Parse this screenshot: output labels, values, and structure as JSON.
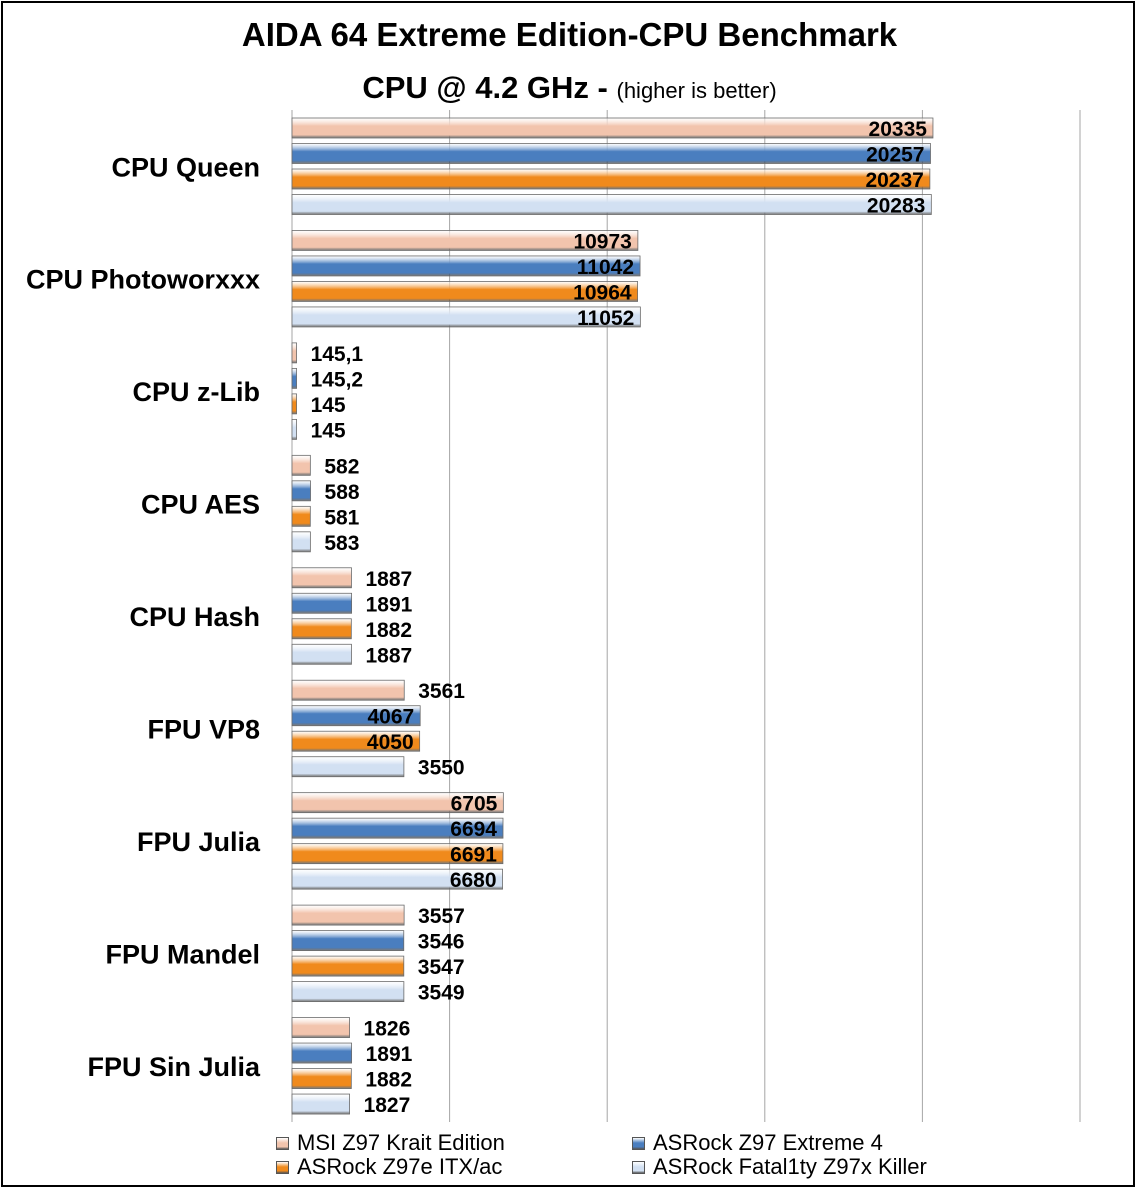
{
  "chart_data": {
    "type": "bar",
    "orientation": "horizontal",
    "title": "AIDA 64 Extreme Edition-CPU Benchmark",
    "subtitle": "CPU @ 4.2 GHz -",
    "subtitle_note": "(higher is better)",
    "categories": [
      "CPU Queen",
      "CPU Photoworxxx",
      "CPU z-Lib",
      "CPU AES",
      "CPU Hash",
      "FPU VP8",
      "FPU Julia",
      "FPU Mandel",
      "FPU Sin Julia"
    ],
    "series": [
      {
        "name": "MSI Z97 Krait Edition",
        "color": "#f2c4ad",
        "values": [
          20335,
          10973,
          145.1,
          582,
          1887,
          3561,
          6705,
          3557,
          1826
        ],
        "labels": [
          "20335",
          "10973",
          "145,1",
          "582",
          "1887",
          "3561",
          "6705",
          "3557",
          "1826"
        ]
      },
      {
        "name": "ASRock Z97 Extreme 4",
        "color": "#4a7ebf",
        "values": [
          20257,
          11042,
          145.2,
          588,
          1891,
          4067,
          6694,
          3546,
          1891
        ],
        "labels": [
          "20257",
          "11042",
          "145,2",
          "588",
          "1891",
          "4067",
          "6694",
          "3546",
          "1891"
        ]
      },
      {
        "name": "ASRock Z97e ITX/ac",
        "color": "#f08a1c",
        "values": [
          20237,
          10964,
          145,
          581,
          1882,
          4050,
          6691,
          3547,
          1882
        ],
        "labels": [
          "20237",
          "10964",
          "145",
          "581",
          "1882",
          "4050",
          "6691",
          "3547",
          "1882"
        ]
      },
      {
        "name": "ASRock Fatal1ty Z97x Killer",
        "color": "#d2e0f2",
        "values": [
          20283,
          11052,
          145,
          583,
          1887,
          3550,
          6680,
          3549,
          1827
        ],
        "labels": [
          "20283",
          "11052",
          "145",
          "583",
          "1887",
          "3550",
          "6680",
          "3549",
          "1827"
        ]
      }
    ],
    "xlim": [
      0,
      25000
    ],
    "x_gridlines": [
      5000,
      10000,
      15000,
      20000,
      25000
    ],
    "x_tick_labels_shown": false,
    "grid": true,
    "legend_position": "bottom"
  }
}
